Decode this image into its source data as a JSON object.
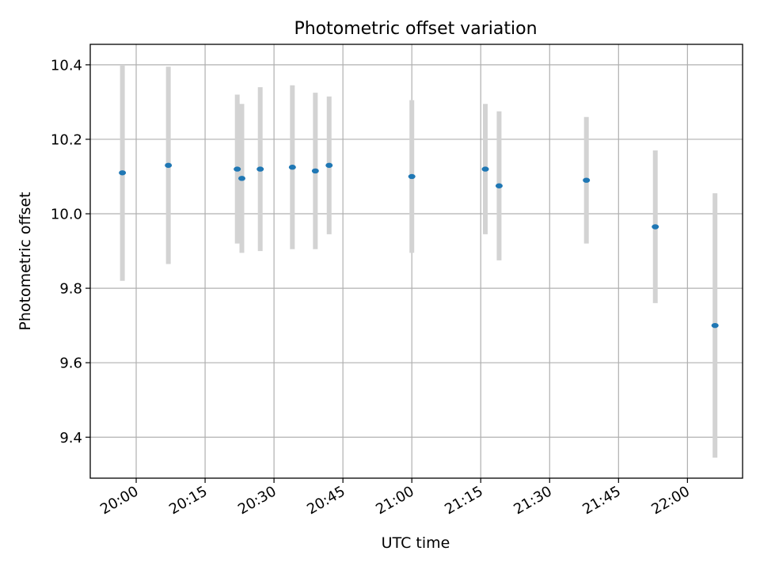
{
  "chart_data": {
    "type": "scatter",
    "title": "Photometric offset variation",
    "xlabel": "UTC time",
    "ylabel": "Photometric offset",
    "xlim": [
      "19:50",
      "22:12"
    ],
    "ylim": [
      9.29,
      10.455
    ],
    "x_ticks": [
      "20:00",
      "20:15",
      "20:30",
      "20:45",
      "21:00",
      "21:15",
      "21:30",
      "21:45",
      "22:00"
    ],
    "y_ticks": [
      9.4,
      9.6,
      9.8,
      10.0,
      10.2,
      10.4
    ],
    "y_tick_labels": [
      "9.4",
      "9.6",
      "9.8",
      "10.0",
      "10.2",
      "10.4"
    ],
    "grid": true,
    "colors": {
      "marker": "#1f77b4",
      "errorbar": "#d3d3d3",
      "grid": "#b0b0b0"
    },
    "series": [
      {
        "points": [
          {
            "x": "19:57",
            "y": 10.11,
            "err": 0.29
          },
          {
            "x": "20:07",
            "y": 10.13,
            "err": 0.265
          },
          {
            "x": "20:22",
            "y": 10.12,
            "err": 0.2
          },
          {
            "x": "20:23",
            "y": 10.095,
            "err": 0.2
          },
          {
            "x": "20:27",
            "y": 10.12,
            "err": 0.22
          },
          {
            "x": "20:34",
            "y": 10.125,
            "err": 0.22
          },
          {
            "x": "20:39",
            "y": 10.115,
            "err": 0.21
          },
          {
            "x": "20:42",
            "y": 10.13,
            "err": 0.185
          },
          {
            "x": "21:00",
            "y": 10.1,
            "err": 0.205
          },
          {
            "x": "21:16",
            "y": 10.12,
            "err": 0.175
          },
          {
            "x": "21:19",
            "y": 10.075,
            "err": 0.2
          },
          {
            "x": "21:38",
            "y": 10.09,
            "err": 0.17
          },
          {
            "x": "21:53",
            "y": 9.965,
            "err": 0.205
          },
          {
            "x": "22:06",
            "y": 9.7,
            "err": 0.355
          }
        ]
      }
    ]
  }
}
